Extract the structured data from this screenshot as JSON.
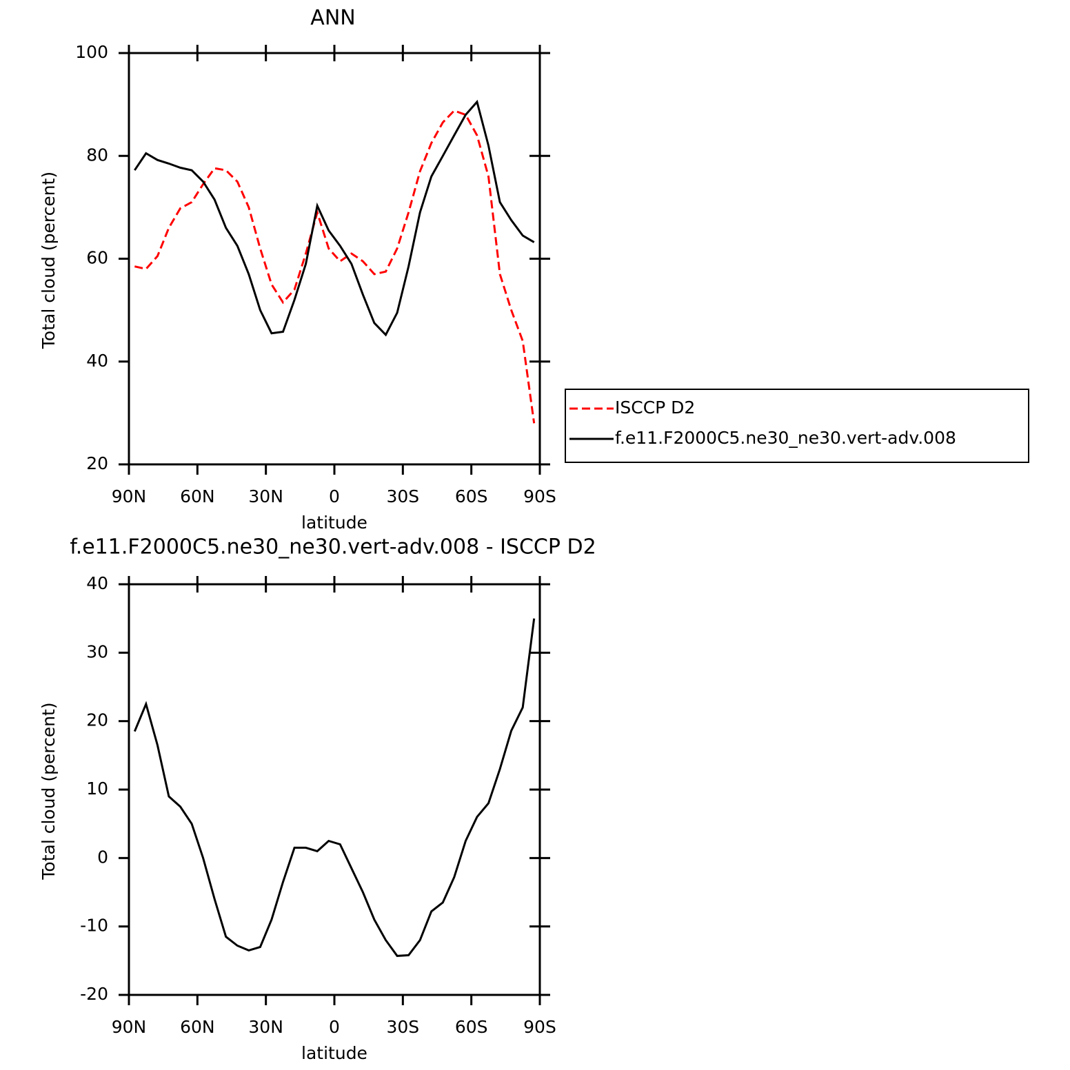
{
  "chart_data": [
    {
      "type": "line",
      "title": "ANN",
      "xlabel": "latitude",
      "ylabel": "Total cloud (percent)",
      "x": [
        87.5,
        82.5,
        77.5,
        72.5,
        67.5,
        62.5,
        57.5,
        52.5,
        47.5,
        42.5,
        37.5,
        32.5,
        27.5,
        22.5,
        17.5,
        12.5,
        7.5,
        2.5,
        -2.5,
        -7.5,
        -12.5,
        -17.5,
        -22.5,
        -27.5,
        -32.5,
        -37.5,
        -42.5,
        -47.5,
        -52.5,
        -57.5,
        -62.5,
        -67.5,
        -72.5,
        -77.5,
        -82.5,
        -87.5
      ],
      "series": [
        {
          "name": "ISCCP D2",
          "color": "#ff0000",
          "dash": "dashed",
          "values": [
            58.5,
            58,
            60.5,
            66,
            69.8,
            71,
            74.5,
            77.6,
            77.2,
            75,
            70,
            62,
            55,
            51.5,
            54,
            61,
            69,
            62,
            59.5,
            61,
            59.5,
            57,
            57.5,
            62,
            69,
            77,
            82.5,
            86.5,
            88.8,
            88,
            84,
            76,
            57,
            50,
            44,
            28
          ]
        },
        {
          "name": "f.e11.F2000C5.ne30_ne30.vert-adv.008",
          "color": "#000000",
          "dash": "solid",
          "values": [
            77.2,
            80.5,
            79.2,
            78.5,
            77.7,
            77.2,
            75,
            71.5,
            66,
            62.5,
            57,
            50,
            45.5,
            45.8,
            52,
            59,
            70.3,
            65.5,
            62.5,
            59,
            53,
            47.5,
            45.2,
            49.5,
            58.5,
            69,
            76,
            80,
            84,
            88,
            90.5,
            82,
            71,
            67.5,
            64.5,
            63.2
          ]
        }
      ],
      "xlim": [
        90,
        -90
      ],
      "xticks": [
        {
          "value": 90,
          "label": "90N"
        },
        {
          "value": 60,
          "label": "60N"
        },
        {
          "value": 30,
          "label": "30N"
        },
        0,
        {
          "value": -30,
          "label": "30S"
        },
        {
          "value": -60,
          "label": "60S"
        },
        {
          "value": -90,
          "label": "90S"
        }
      ],
      "ylim": [
        20,
        100
      ],
      "yticks": [
        20,
        40,
        60,
        80,
        100
      ],
      "legend": "right"
    },
    {
      "type": "line",
      "title": "f.e11.F2000C5.ne30_ne30.vert-adv.008 - ISCCP D2",
      "xlabel": "latitude",
      "ylabel": "Total cloud (percent)",
      "x": [
        87.5,
        82.5,
        77.5,
        72.5,
        67.5,
        62.5,
        57.5,
        52.5,
        47.5,
        42.5,
        37.5,
        32.5,
        27.5,
        22.5,
        17.5,
        12.5,
        7.5,
        2.5,
        -2.5,
        -7.5,
        -12.5,
        -17.5,
        -22.5,
        -27.5,
        -32.5,
        -37.5,
        -42.5,
        -47.5,
        -52.5,
        -57.5,
        -62.5,
        -67.5,
        -72.5,
        -77.5,
        -82.5,
        -87.5
      ],
      "values": [
        18.5,
        22.5,
        16.5,
        9,
        7.5,
        5,
        0,
        -6,
        -11.5,
        -12.8,
        -13.5,
        -13,
        -9,
        -3.5,
        1.5,
        1.5,
        1,
        2.5,
        2,
        -1.5,
        -5,
        -9,
        -12,
        -14.3,
        -14.2,
        -12,
        -7.8,
        -6.5,
        -2.8,
        2.5,
        6,
        8,
        13,
        18.6,
        22,
        35
      ],
      "color": "#000000",
      "xlim": [
        90,
        -90
      ],
      "xticks": [
        {
          "value": 90,
          "label": "90N"
        },
        {
          "value": 60,
          "label": "60N"
        },
        {
          "value": 30,
          "label": "30N"
        },
        0,
        {
          "value": -30,
          "label": "30S"
        },
        {
          "value": -60,
          "label": "60S"
        },
        {
          "value": -90,
          "label": "90S"
        }
      ],
      "ylim": [
        -20,
        40
      ],
      "yticks": [
        -20,
        -10,
        0,
        10,
        20,
        30,
        40
      ]
    }
  ]
}
